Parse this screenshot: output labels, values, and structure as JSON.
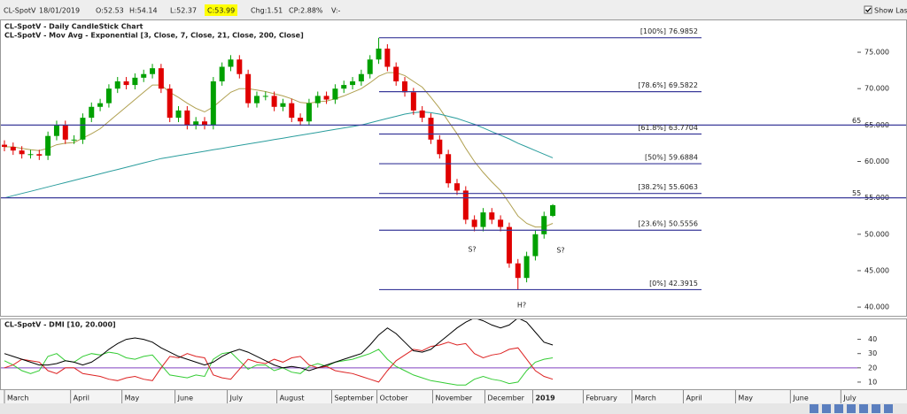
{
  "toolbar": {
    "symbol": "CL-SpotV",
    "date": "18/01/2019",
    "open": "O:52.53",
    "high": "H:54.14",
    "low": "L:52.37",
    "close": "C:53.99",
    "change": "Chg:1.51",
    "change_pct": "CP:2.88%",
    "volume": "V:-",
    "show_last": "Show Last"
  },
  "chart_data": [
    {
      "type": "candlestick",
      "title": "CL-SpotV - Daily CandleStick Chart",
      "subtitle": "CL-SpotV - Mov Avg - Exponential [3, Close, 7, Close, 21, Close, 200, Close]",
      "up_color": "#00a000",
      "down_color": "#e00000",
      "x": [
        0,
        1,
        2,
        3,
        4,
        5,
        6,
        7,
        8,
        9,
        10,
        11,
        12,
        13,
        14,
        15,
        16,
        17,
        18,
        19,
        20,
        21,
        22,
        23,
        24,
        25,
        26,
        27,
        28,
        29,
        30,
        31,
        32,
        33,
        34,
        35,
        36,
        37,
        38,
        39,
        40,
        41,
        42,
        43,
        44,
        45,
        46,
        47,
        48,
        49,
        50,
        51,
        52,
        53,
        54,
        55,
        56,
        57,
        58,
        59,
        60,
        61,
        62,
        63
      ],
      "open": [
        62.3,
        62,
        61.5,
        61,
        61,
        60.8,
        63.5,
        65,
        63,
        63,
        66,
        67.5,
        68,
        70,
        71,
        70.5,
        71.5,
        72,
        72.8,
        70,
        66,
        67,
        65,
        65.5,
        65,
        71,
        73,
        74,
        72,
        68,
        69,
        69,
        67.5,
        68,
        66,
        65.5,
        68,
        69,
        68.5,
        70,
        70.5,
        71,
        72,
        74,
        75.5,
        73,
        71,
        69.5,
        67,
        66,
        63,
        61,
        57,
        56,
        52,
        51,
        53,
        52,
        51,
        46,
        44,
        47,
        50,
        52.53
      ],
      "high": [
        62.9,
        62.6,
        62.1,
        61.6,
        61.6,
        64.1,
        65.6,
        65.6,
        63.6,
        66.6,
        68.1,
        68.6,
        70.6,
        71.6,
        71.6,
        72.1,
        72.6,
        73.4,
        73.4,
        70.6,
        67.6,
        67.6,
        66.1,
        66.1,
        71.6,
        73.6,
        74.6,
        74.6,
        72.6,
        69.6,
        69.6,
        69.6,
        68.6,
        68.6,
        66.6,
        68.6,
        69.6,
        69.6,
        70.6,
        71.1,
        71.6,
        72.6,
        74.6,
        76.98,
        76.1,
        73.6,
        71.6,
        70.1,
        67.6,
        66.6,
        63.6,
        61.6,
        57.6,
        56.6,
        52.6,
        53.6,
        53.6,
        52.6,
        51.6,
        46.6,
        47.6,
        50.6,
        53.1,
        54.14
      ],
      "low": [
        61.4,
        60.9,
        60.4,
        60.4,
        60.2,
        60.2,
        62.9,
        62.4,
        62.4,
        62.4,
        65.4,
        66.9,
        67.4,
        69.4,
        69.9,
        69.9,
        70.9,
        71.4,
        69.4,
        65.4,
        65.4,
        64.4,
        64.4,
        64.4,
        64.4,
        70.4,
        72.4,
        71.4,
        67.4,
        67.4,
        68.4,
        66.9,
        66.9,
        65.4,
        64.9,
        64.9,
        67.4,
        67.9,
        67.9,
        69.4,
        69.9,
        70.4,
        71.4,
        73.4,
        72.4,
        70.4,
        68.9,
        66.4,
        65.4,
        62.4,
        60.4,
        56.4,
        55.4,
        51.4,
        50.4,
        50.4,
        51.4,
        50.4,
        45.4,
        42.39,
        43.4,
        46.4,
        49.4,
        52.37
      ],
      "close": [
        62,
        61.5,
        61,
        61,
        60.8,
        63.5,
        65,
        63,
        63,
        66,
        67.5,
        68,
        70,
        71,
        70.5,
        71.5,
        72,
        72.8,
        70,
        66,
        67,
        65,
        65.5,
        65,
        71,
        73,
        74,
        72,
        68,
        69,
        69,
        67.5,
        68,
        66,
        65.5,
        68,
        69,
        68.5,
        70,
        70.5,
        71,
        72,
        74,
        75.5,
        73,
        71,
        69.5,
        67,
        66,
        63,
        61,
        57,
        56,
        52,
        51,
        53,
        52,
        51,
        46,
        44,
        47,
        50,
        52.5,
        53.99
      ],
      "series": [
        {
          "color": "#b0a050",
          "values": [
            62,
            62,
            61.8,
            61.6,
            61.5,
            61.8,
            62.3,
            62.5,
            62.6,
            63.2,
            63.8,
            64.5,
            65.5,
            66.5,
            67.5,
            68.5,
            69.5,
            70.5,
            70.5,
            69.5,
            68.8,
            68,
            67.3,
            66.8,
            67.5,
            68.5,
            69.5,
            70,
            70,
            69.8,
            69.6,
            69.3,
            69,
            68.6,
            68.1,
            68,
            68.2,
            68.3,
            68.6,
            69,
            69.5,
            70,
            70.8,
            71.7,
            72.2,
            72.2,
            71.8,
            71,
            70.2,
            68.8,
            67.3,
            65.5,
            63.8,
            61.8,
            60,
            58.5,
            57.2,
            56,
            54.3,
            52.5,
            51.5,
            51,
            51,
            51.5
          ]
        },
        {
          "color": "#2a9d9d",
          "values": [
            55.0,
            55.3,
            55.6,
            55.9,
            56.2,
            56.5,
            56.8,
            57.1,
            57.4,
            57.7,
            58.0,
            58.3,
            58.6,
            58.9,
            59.2,
            59.5,
            59.8,
            60.1,
            60.4,
            60.6,
            60.8,
            61.0,
            61.2,
            61.4,
            61.6,
            61.8,
            62.0,
            62.2,
            62.4,
            62.6,
            62.8,
            63.0,
            63.2,
            63.4,
            63.6,
            63.8,
            64.0,
            64.2,
            64.4,
            64.6,
            64.8,
            65.0,
            65.3,
            65.6,
            65.9,
            66.2,
            66.5,
            66.7,
            66.8,
            66.7,
            66.5,
            66.2,
            65.9,
            65.5,
            65.1,
            64.6,
            64.1,
            63.6,
            63.1,
            62.5,
            62.0,
            61.5,
            61.0,
            60.5
          ]
        }
      ],
      "hlines": [
        65,
        55
      ],
      "line_color": "#3a3a9a",
      "fib_levels": [
        {
          "label": "[100%]",
          "value": 76.9852
        },
        {
          "label": "[78.6%]",
          "value": 69.5822
        },
        {
          "label": "[61.8%]",
          "value": 63.7704
        },
        {
          "label": "[50%]",
          "value": 59.6884
        },
        {
          "label": "[38.2%]",
          "value": 55.6063
        },
        {
          "label": "[23.6%]",
          "value": 50.5556
        },
        {
          "label": "[0%]",
          "value": 42.3915
        }
      ],
      "annotations": [
        "S?",
        "S?",
        "H?"
      ],
      "xlim": [
        0,
        98
      ],
      "ylim": [
        38.8,
        79.5
      ],
      "yticks": [
        {
          "value": 40,
          "label": "40.000"
        },
        {
          "value": 45,
          "label": "45.000"
        },
        {
          "value": 50,
          "label": "50.000"
        },
        {
          "value": 55,
          "label": "55.000"
        },
        {
          "value": 60,
          "label": "60.000"
        },
        {
          "value": 65,
          "label": "65.000"
        },
        {
          "value": 70,
          "label": "70.000"
        },
        {
          "value": 75,
          "label": "75.000"
        }
      ]
    },
    {
      "type": "line",
      "title": "CL-SpotV - DMI [10, 20.000]",
      "x": [
        0,
        1,
        2,
        3,
        4,
        5,
        6,
        7,
        8,
        9,
        10,
        11,
        12,
        13,
        14,
        15,
        16,
        17,
        18,
        19,
        20,
        21,
        22,
        23,
        24,
        25,
        26,
        27,
        28,
        29,
        30,
        31,
        32,
        33,
        34,
        35,
        36,
        37,
        38,
        39,
        40,
        41,
        42,
        43,
        44,
        45,
        46,
        47,
        48,
        49,
        50,
        51,
        52,
        53,
        54,
        55,
        56,
        57,
        58,
        59,
        60,
        61,
        62,
        63
      ],
      "series": [
        {
          "color": "#33cc33",
          "values": [
            25,
            22,
            18,
            16,
            18,
            28,
            30,
            25,
            24,
            28,
            30,
            29,
            31,
            30,
            27,
            26,
            28,
            29,
            22,
            15,
            14,
            13,
            15,
            14,
            26,
            30,
            31,
            25,
            19,
            22,
            22,
            18,
            20,
            17,
            16,
            21,
            23,
            21,
            24,
            25,
            26,
            28,
            30,
            33,
            26,
            21,
            18,
            15,
            13,
            11,
            10,
            9,
            8,
            8,
            12,
            14,
            12,
            11,
            9,
            10,
            18,
            24,
            26,
            27
          ]
        },
        {
          "color": "#dd2222",
          "values": [
            20,
            22,
            26,
            25,
            24,
            18,
            16,
            20,
            20,
            16,
            15,
            14,
            12,
            11,
            13,
            14,
            12,
            11,
            20,
            28,
            27,
            30,
            28,
            27,
            15,
            13,
            12,
            19,
            26,
            24,
            23,
            26,
            24,
            27,
            28,
            22,
            20,
            21,
            18,
            17,
            16,
            14,
            12,
            10,
            18,
            25,
            29,
            33,
            32,
            35,
            36,
            38,
            36,
            37,
            30,
            27,
            29,
            30,
            33,
            34,
            26,
            18,
            14,
            12
          ]
        },
        {
          "color": "#000000",
          "values": [
            30,
            28,
            26,
            24,
            22,
            22,
            23,
            25,
            24,
            22,
            24,
            28,
            33,
            37,
            40,
            41,
            40,
            38,
            34,
            31,
            28,
            26,
            24,
            22,
            24,
            28,
            31,
            33,
            31,
            28,
            25,
            22,
            20,
            21,
            20,
            18,
            20,
            22,
            24,
            26,
            28,
            30,
            36,
            43,
            48,
            44,
            38,
            32,
            31,
            33,
            38,
            43,
            48,
            52,
            55,
            53,
            50,
            48,
            50,
            55,
            52,
            45,
            38,
            36
          ]
        }
      ],
      "reference_line": 20,
      "reference_color": "#8040c0",
      "xlim": [
        0,
        98
      ],
      "ylim": [
        5,
        54
      ],
      "yticks": [
        10,
        20,
        30,
        40
      ],
      "xticks": [
        {
          "value": 0,
          "label": "March"
        },
        {
          "value": 7.6,
          "label": "April"
        },
        {
          "value": 13.5,
          "label": "May"
        },
        {
          "value": 19.6,
          "label": "June"
        },
        {
          "value": 25.6,
          "label": "July"
        },
        {
          "value": 31.3,
          "label": "August"
        },
        {
          "value": 37.6,
          "label": "September"
        },
        {
          "value": 42.8,
          "label": "October"
        },
        {
          "value": 49.2,
          "label": "November"
        },
        {
          "value": 55.2,
          "label": "December"
        },
        {
          "value": 60.7,
          "label": "2019"
        },
        {
          "value": 66.5,
          "label": "February"
        },
        {
          "value": 72.1,
          "label": "March"
        },
        {
          "value": 78,
          "label": "April"
        },
        {
          "value": 84,
          "label": "May"
        },
        {
          "value": 90.3,
          "label": "June"
        },
        {
          "value": 96.1,
          "label": "July"
        }
      ]
    }
  ]
}
